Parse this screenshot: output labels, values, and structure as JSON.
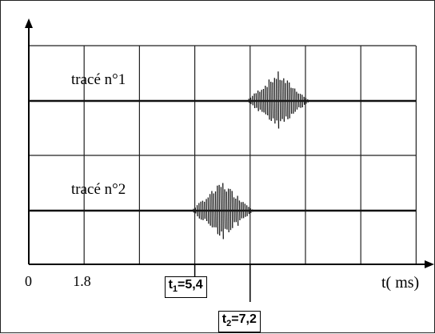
{
  "chart_data": {
    "type": "line",
    "xlabel": "t( ms)",
    "x_ticks": [
      {
        "value": 0,
        "label": "0"
      },
      {
        "value": 1.8,
        "label": "1.8"
      }
    ],
    "xlim": [
      0,
      12.6
    ],
    "grid": true,
    "series": [
      {
        "name": "tracé n°1",
        "burst_center_t": 8.1,
        "burst_start_t": 7.2,
        "burst_end_t": 9.0
      },
      {
        "name": "tracé n°2",
        "burst_center_t": 6.3,
        "burst_start_t": 5.4,
        "burst_end_t": 7.2
      }
    ],
    "annotations": [
      {
        "id": "t1",
        "sym": "t",
        "sub": "1",
        "value_text": "=5,4",
        "t": 5.4
      },
      {
        "id": "t2",
        "sym": "t",
        "sub": "2",
        "value_text": "=7,2",
        "t": 7.2
      }
    ],
    "colors": {
      "trace": "#111111",
      "burst": "#1a1a1a",
      "grid": "#222222"
    }
  }
}
